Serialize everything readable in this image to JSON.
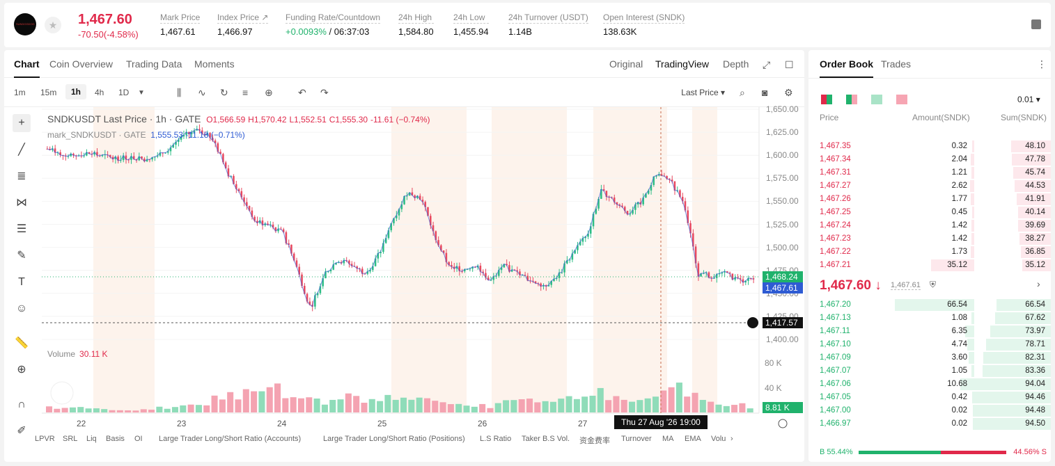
{
  "header": {
    "logo_text": "SUNDOGDOG",
    "price": "1,467.60",
    "change": "-70.50(-4.58%)",
    "stats": [
      {
        "label": "Mark Price",
        "value": "1,467.61"
      },
      {
        "label": "Index Price ↗",
        "value": "1,466.97"
      },
      {
        "label": "Funding Rate/Countdown",
        "value_green": "+0.0093%",
        "value": " / 06:37:03"
      },
      {
        "label": "24h High",
        "value": "1,584.80"
      },
      {
        "label": "24h Low",
        "value": "1,455.94"
      },
      {
        "label": "24h Turnover (USDT)",
        "value": "1.14B"
      },
      {
        "label": "Open Interest (SNDK)",
        "value": "138.63K"
      }
    ]
  },
  "chart_panel": {
    "tabs": [
      "Chart",
      "Coin Overview",
      "Trading Data",
      "Moments"
    ],
    "views": [
      "Original",
      "TradingView",
      "Depth"
    ],
    "timeframes": [
      "1m",
      "15m",
      "1h",
      "4h",
      "1D"
    ],
    "price_source": "Last Price"
  },
  "legend": {
    "title": "SNDKUSDT Last Price · 1h · GATE",
    "o": "O1,566.59",
    "h": "H1,570.42",
    "l": "L1,552.51",
    "c": "C1,555.30",
    "chg": "-11.61 (−0.74%)",
    "mark_label": "mark_SNDKUSDT · GATE",
    "mark_vals": "1,555.53  -11.18 (−0.71%)",
    "volume_label": "Volume",
    "volume_val": "30.11 K"
  },
  "axis": {
    "price_ticks": [
      "1,650.00",
      "1,625.00",
      "1,600.00",
      "1,575.00",
      "1,550.00",
      "1,525.00",
      "1,500.00",
      "1,475.00",
      "1,450.00",
      "1,425.00",
      "1,400.00"
    ],
    "volume_ticks": [
      "80 K",
      "40 K"
    ],
    "x_ticks": [
      "22",
      "23",
      "24",
      "25",
      "26",
      "27"
    ],
    "last_tag": "1,468.24",
    "mark_tag": "1,467.61",
    "cross_tag": "1,417.57",
    "vol_tag": "8.81 K",
    "cross_date": "Thu 27 Aug '26   19:00"
  },
  "bottom_indicators": [
    "LPVR",
    "SRL",
    "Liq",
    "Basis",
    "OI",
    "Large Trader Long/Short Ratio (Accounts)",
    "Large Trader Long/Short Ratio (Positions)",
    "L.S Ratio",
    "Taker B.S Vol.",
    "资金费率",
    "Turnover",
    "MA",
    "EMA",
    "Volu"
  ],
  "chart_data": {
    "type": "candlestick",
    "symbol": "SNDKUSDT",
    "interval": "1h",
    "ylim": [
      1400,
      1650
    ],
    "x": [
      "22",
      "23",
      "24",
      "25",
      "26",
      "27"
    ],
    "close_path": [
      1605,
      1600,
      1598,
      1600,
      1597,
      1595,
      1596,
      1594,
      1598,
      1608,
      1620,
      1625,
      1615,
      1580,
      1555,
      1528,
      1522,
      1515,
      1478,
      1432,
      1470,
      1485,
      1480,
      1470,
      1492,
      1530,
      1558,
      1552,
      1510,
      1478,
      1475,
      1480,
      1462,
      1478,
      1470,
      1462,
      1458,
      1470,
      1495,
      1512,
      1560,
      1548,
      1535,
      1550,
      1578,
      1570,
      1546,
      1470,
      1468,
      1470,
      1462,
      1467
    ],
    "volume_path": [
      26,
      12,
      14,
      18,
      10,
      8,
      9,
      12,
      16,
      14,
      26,
      30,
      48,
      70,
      66,
      55,
      100,
      60,
      76,
      40,
      36,
      52,
      62,
      44,
      50,
      54,
      58,
      52,
      30,
      26,
      30,
      24,
      20,
      40,
      66,
      52,
      28,
      44,
      54,
      62,
      68,
      58,
      50,
      34,
      60,
      92,
      86,
      44,
      36,
      20,
      26,
      8
    ]
  },
  "order_book": {
    "tabs": [
      "Order Book",
      "Trades"
    ],
    "precision": "0.01",
    "headers": [
      "Price",
      "Amount(SNDK)",
      "Sum(SNDK)"
    ],
    "asks": [
      [
        "1,467.35",
        "0.32",
        "48.10"
      ],
      [
        "1,467.34",
        "2.04",
        "47.78"
      ],
      [
        "1,467.31",
        "1.21",
        "45.74"
      ],
      [
        "1,467.27",
        "2.62",
        "44.53"
      ],
      [
        "1,467.26",
        "1.77",
        "41.91"
      ],
      [
        "1,467.25",
        "0.45",
        "40.14"
      ],
      [
        "1,467.24",
        "1.42",
        "39.69"
      ],
      [
        "1,467.23",
        "1.42",
        "38.27"
      ],
      [
        "1,467.22",
        "1.73",
        "36.85"
      ],
      [
        "1,467.21",
        "35.12",
        "35.12"
      ]
    ],
    "mid_price": "1,467.60 ↓",
    "mid_mark": "1,467.61",
    "bids": [
      [
        "1,467.20",
        "66.54",
        "66.54"
      ],
      [
        "1,467.13",
        "1.08",
        "67.62"
      ],
      [
        "1,467.11",
        "6.35",
        "73.97"
      ],
      [
        "1,467.10",
        "4.74",
        "78.71"
      ],
      [
        "1,467.09",
        "3.60",
        "82.31"
      ],
      [
        "1,467.07",
        "1.05",
        "83.36"
      ],
      [
        "1,467.06",
        "10.68",
        "94.04"
      ],
      [
        "1,467.05",
        "0.42",
        "94.46"
      ],
      [
        "1,467.00",
        "0.02",
        "94.48"
      ],
      [
        "1,466.97",
        "0.02",
        "94.50"
      ]
    ],
    "buy_ratio": "B 55.44%",
    "sell_ratio": "44.56% S",
    "buy_fraction": 0.5544
  }
}
